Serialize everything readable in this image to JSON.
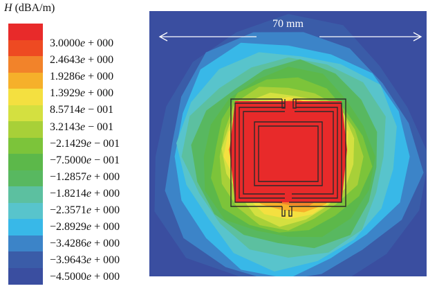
{
  "legend": {
    "title_var": "H",
    "title_unit": " (dBA/m)",
    "ticks": [
      {
        "m": "3.0000",
        "e": "e",
        "x": " + 000"
      },
      {
        "m": "2.4643",
        "e": "e",
        "x": " + 000"
      },
      {
        "m": "1.9286",
        "e": "e",
        "x": " + 000"
      },
      {
        "m": "1.3929",
        "e": "e",
        "x": " + 000"
      },
      {
        "m": "8.5714",
        "e": "e",
        "x": " − 001"
      },
      {
        "m": "3.2143",
        "e": "e",
        "x": " − 001"
      },
      {
        "m": "−2.1429",
        "e": "e",
        "x": " − 001"
      },
      {
        "m": "−7.5000",
        "e": "e",
        "x": " − 001"
      },
      {
        "m": "−1.2857",
        "e": "e",
        "x": " + 000"
      },
      {
        "m": "−1.8214",
        "e": "e",
        "x": " + 000"
      },
      {
        "m": "−2.3571",
        "e": "e",
        "x": " + 000"
      },
      {
        "m": "−2.8929",
        "e": "e",
        "x": " + 000"
      },
      {
        "m": "−3.4286",
        "e": "e",
        "x": " + 000"
      },
      {
        "m": "−3.9643",
        "e": "e",
        "x": " + 000"
      },
      {
        "m": "−4.5000",
        "e": "e",
        "x": " + 000"
      }
    ],
    "colors": [
      "#e82a2a",
      "#ee4a22",
      "#f2832a",
      "#f6b02a",
      "#f4e040",
      "#d4e040",
      "#a8d038",
      "#7cc43a",
      "#5cb84a",
      "#58b860",
      "#5cc0a0",
      "#58c4cc",
      "#38b8e8",
      "#3c84c8",
      "#3a5ca8",
      "#3a4ea0"
    ]
  },
  "scale_label": "70 mm",
  "chart_data": {
    "type": "heatmap",
    "title": "",
    "colorbar_label": "H (dBA/m)",
    "colorbar_ticks": [
      3.0,
      2.4643,
      1.9286,
      1.3929,
      0.85714,
      0.32143,
      -0.21429,
      -0.75,
      -1.2857,
      -1.8214,
      -2.3571,
      -2.8929,
      -3.4286,
      -3.9643,
      -4.5
    ],
    "value_range": [
      -4.5,
      3.0
    ],
    "field_extent_mm": 70,
    "description_levels": [
      3.0,
      2.4643,
      1.9286,
      1.3929,
      0.85714,
      0.32143,
      -0.21429,
      -0.75,
      -1.2857,
      -1.8214,
      -2.3571,
      -2.8929,
      -3.4286,
      -3.9643,
      -4.5
    ]
  }
}
